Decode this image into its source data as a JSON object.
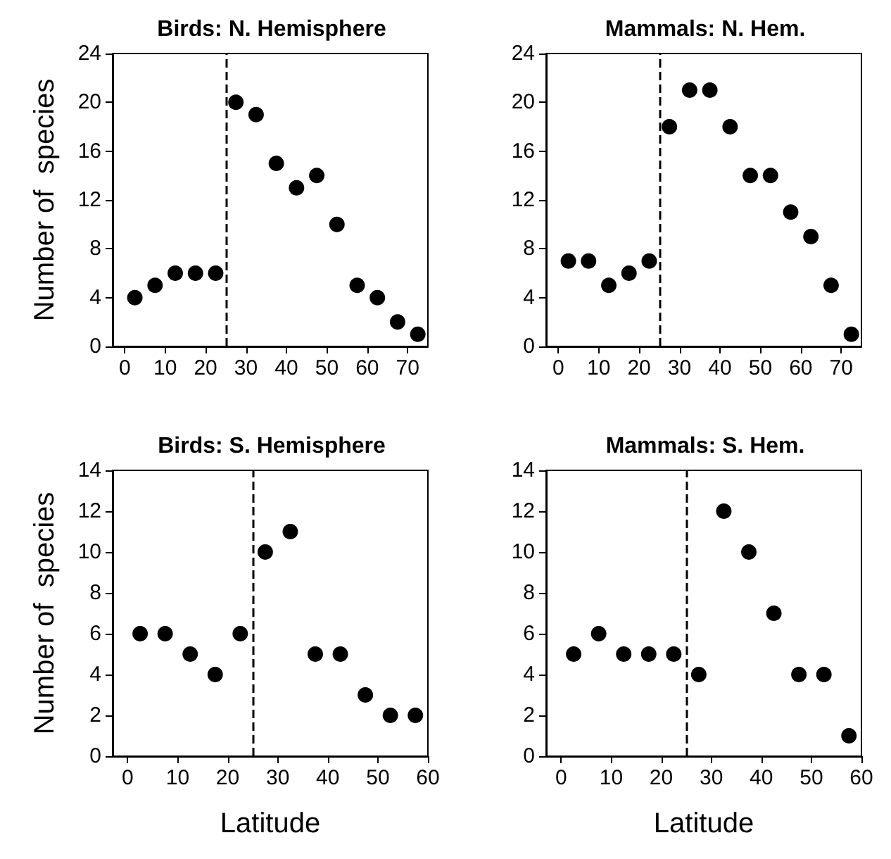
{
  "chart_data": [
    {
      "type": "scatter",
      "title": "Birds: N. Hemisphere",
      "ylabel": "Number of  species",
      "x": [
        2.5,
        7.5,
        12.5,
        17.5,
        22.5,
        27.5,
        32.5,
        37.5,
        42.5,
        47.5,
        52.5,
        57.5,
        62.5,
        67.5,
        72.5
      ],
      "series": [
        {
          "color": "#000000",
          "values": [
            4,
            5,
            6,
            6,
            6,
            20,
            19,
            15,
            13,
            14,
            10,
            5,
            4,
            2,
            1
          ]
        }
      ],
      "xlim": [
        -3,
        75
      ],
      "xticks": [
        0,
        10,
        20,
        30,
        40,
        50,
        60,
        70
      ],
      "ylim": [
        0,
        24
      ],
      "yticks": [
        0,
        4,
        8,
        12,
        16,
        20,
        24
      ],
      "ref_lines": [
        {
          "axis": "x",
          "value": 25,
          "line_style": "dashed",
          "color": "#000000"
        }
      ],
      "marker": "circle",
      "grid": false
    },
    {
      "type": "scatter",
      "title": "Mammals: N. Hem.",
      "x": [
        2.5,
        7.5,
        12.5,
        17.5,
        22.5,
        27.5,
        32.5,
        37.5,
        42.5,
        47.5,
        52.5,
        57.5,
        62.5,
        67.5,
        72.5
      ],
      "series": [
        {
          "color": "#000000",
          "values": [
            7,
            7,
            5,
            6,
            7,
            18,
            21,
            21,
            18,
            14,
            14,
            11,
            9,
            5,
            1
          ]
        }
      ],
      "xlim": [
        -3,
        75
      ],
      "xticks": [
        0,
        10,
        20,
        30,
        40,
        50,
        60,
        70
      ],
      "ylim": [
        0,
        24
      ],
      "yticks": [
        0,
        4,
        8,
        12,
        16,
        20,
        24
      ],
      "ref_lines": [
        {
          "axis": "x",
          "value": 25,
          "line_style": "dashed",
          "color": "#000000"
        }
      ],
      "marker": "circle",
      "grid": false
    },
    {
      "type": "scatter",
      "title": "Birds: S. Hemisphere",
      "xlabel": "Latitude",
      "ylabel": "Number of  species",
      "x": [
        2.5,
        7.5,
        12.5,
        17.5,
        22.5,
        27.5,
        32.5,
        37.5,
        42.5,
        47.5,
        52.5,
        57.5
      ],
      "series": [
        {
          "color": "#000000",
          "values": [
            6,
            6,
            5,
            4,
            6,
            10,
            11,
            5,
            5,
            3,
            2,
            2
          ]
        }
      ],
      "xlim": [
        -3,
        60
      ],
      "xticks": [
        0,
        10,
        20,
        30,
        40,
        50,
        60
      ],
      "ylim": [
        0,
        14
      ],
      "yticks": [
        0,
        2,
        4,
        6,
        8,
        10,
        12,
        14
      ],
      "ref_lines": [
        {
          "axis": "x",
          "value": 25,
          "line_style": "dashed",
          "color": "#000000"
        }
      ],
      "marker": "circle",
      "grid": false
    },
    {
      "type": "scatter",
      "title": "Mammals: S. Hem.",
      "xlabel": "Latitude",
      "x": [
        2.5,
        7.5,
        12.5,
        17.5,
        22.5,
        27.5,
        32.5,
        37.5,
        42.5,
        47.5,
        52.5,
        57.5
      ],
      "series": [
        {
          "color": "#000000",
          "values": [
            5,
            6,
            5,
            5,
            5,
            4,
            12,
            10,
            7,
            4,
            4,
            1
          ]
        }
      ],
      "xlim": [
        -3,
        60
      ],
      "xticks": [
        0,
        10,
        20,
        30,
        40,
        50,
        60
      ],
      "ylim": [
        0,
        14
      ],
      "yticks": [
        0,
        2,
        4,
        6,
        8,
        10,
        12,
        14
      ],
      "ref_lines": [
        {
          "axis": "x",
          "value": 25,
          "line_style": "dashed",
          "color": "#000000"
        }
      ],
      "marker": "circle",
      "grid": false
    }
  ]
}
